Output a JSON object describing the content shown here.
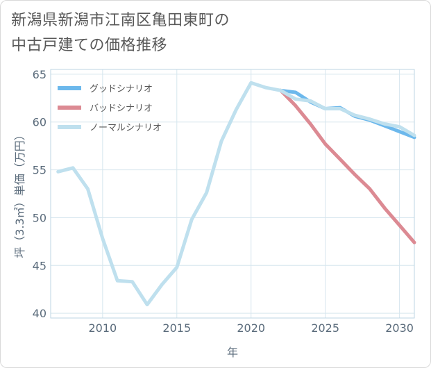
{
  "title_line1": "新潟県新潟市江南区亀田東町の",
  "title_line2": "中古戸建ての価格推移",
  "chart_data": {
    "type": "line",
    "title": "新潟県新潟市江南区亀田東町の中古戸建ての価格推移",
    "xlabel": "年",
    "ylabel": "坪（3.3㎡）単価（万円）",
    "xlim": [
      2006.5,
      2031
    ],
    "ylim": [
      39.5,
      65.5
    ],
    "xticks": [
      2010,
      2015,
      2020,
      2025,
      2030
    ],
    "yticks": [
      40,
      45,
      50,
      55,
      60,
      65
    ],
    "grid": true,
    "legend_position": "top-left",
    "series": [
      {
        "name": "グッドシナリオ",
        "color": "#6cb8ec",
        "x": [
          2022,
          2023,
          2024,
          2025,
          2026,
          2027,
          2028,
          2029,
          2030,
          2031
        ],
        "values": [
          63.3,
          63.1,
          62.1,
          61.4,
          61.5,
          60.6,
          60.2,
          59.6,
          59.0,
          58.4
        ]
      },
      {
        "name": "バッドシナリオ",
        "color": "#dc8a93",
        "x": [
          2022,
          2023,
          2024,
          2025,
          2026,
          2027,
          2028,
          2029,
          2030,
          2031
        ],
        "values": [
          63.3,
          61.7,
          59.8,
          57.7,
          56.1,
          54.5,
          53.0,
          51.0,
          49.2,
          47.4
        ]
      },
      {
        "name": "ノーマルシナリオ",
        "color": "#bfe0ee",
        "x": [
          2007,
          2008,
          2009,
          2010,
          2011,
          2012,
          2013,
          2014,
          2015,
          2016,
          2017,
          2018,
          2019,
          2020,
          2021,
          2022,
          2023,
          2024,
          2025,
          2026,
          2027,
          2028,
          2029,
          2030,
          2031
        ],
        "values": [
          54.8,
          55.2,
          53.0,
          47.8,
          43.4,
          43.3,
          40.9,
          43.0,
          44.8,
          49.8,
          52.6,
          58.0,
          61.3,
          64.1,
          63.6,
          63.3,
          62.4,
          62.2,
          61.4,
          61.4,
          60.7,
          60.3,
          59.8,
          59.5,
          58.6
        ]
      }
    ]
  }
}
